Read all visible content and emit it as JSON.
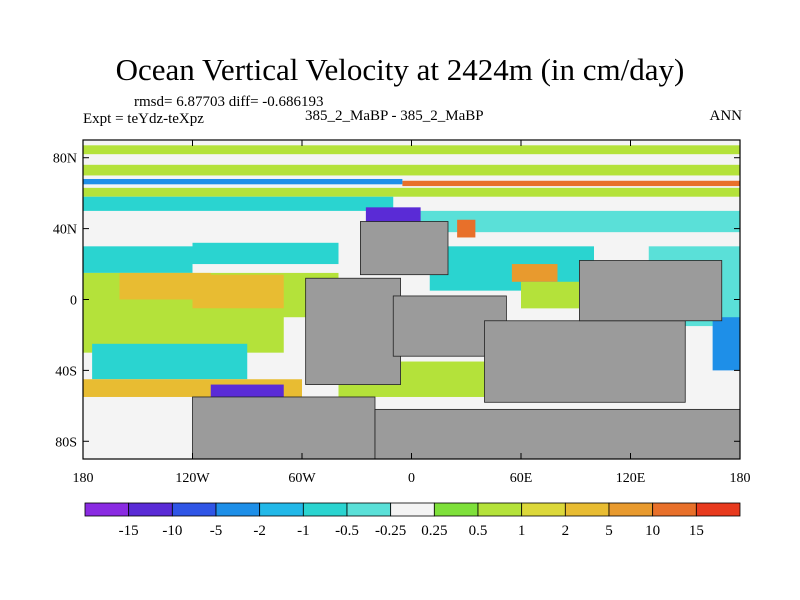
{
  "chart_data": {
    "type": "heatmap",
    "title": "Ocean Vertical Velocity at 2424m (in cm/day)",
    "stats_label": "rmsd= 6.87703 diff= -0.686193",
    "experiment_label": "Expt = teYdz-teXpz",
    "case_label": "385_2_MaBP - 385_2_MaBP",
    "season_label": "ANN",
    "projection": "cylindrical equidistant",
    "xlim": [
      -180,
      180
    ],
    "ylim": [
      -90,
      90
    ],
    "x_ticks": [
      {
        "value": -180,
        "label": "180"
      },
      {
        "value": -120,
        "label": "120W"
      },
      {
        "value": -60,
        "label": "60W"
      },
      {
        "value": 0,
        "label": "0"
      },
      {
        "value": 60,
        "label": "60E"
      },
      {
        "value": 120,
        "label": "120E"
      },
      {
        "value": 180,
        "label": "180"
      }
    ],
    "y_ticks": [
      {
        "value": 80,
        "label": "80N"
      },
      {
        "value": 40,
        "label": "40N"
      },
      {
        "value": 0,
        "label": "0"
      },
      {
        "value": -40,
        "label": "40S"
      },
      {
        "value": -80,
        "label": "80S"
      }
    ],
    "colorbar": {
      "colors": [
        "#8a2be2",
        "#5a2bd6",
        "#2f55e6",
        "#1e8fe8",
        "#22b8e8",
        "#2ad4d0",
        "#5ae0d8",
        "#f4f4f4",
        "#7ee03a",
        "#b4e23a",
        "#dcd83a",
        "#e8bc32",
        "#e89a2e",
        "#e8702a",
        "#e83a1e"
      ],
      "boundaries": [
        "-15",
        "-10",
        "-5",
        "-2",
        "-1",
        "-0.5",
        "-0.25",
        "0.25",
        "0.5",
        "1",
        "2",
        "5",
        "10",
        "15"
      ]
    },
    "land_color": "#9b9b9b",
    "land_boxes": [
      {
        "lon": [
          -120,
          -20
        ],
        "lat": [
          -90,
          -55
        ]
      },
      {
        "lon": [
          -20,
          180
        ],
        "lat": [
          -90,
          -62
        ]
      },
      {
        "lon": [
          -58,
          -6
        ],
        "lat": [
          -48,
          12
        ]
      },
      {
        "lon": [
          -10,
          52
        ],
        "lat": [
          -32,
          2
        ]
      },
      {
        "lon": [
          40,
          150
        ],
        "lat": [
          -58,
          -12
        ]
      },
      {
        "lon": [
          92,
          170
        ],
        "lat": [
          -12,
          22
        ]
      },
      {
        "lon": [
          -28,
          20
        ],
        "lat": [
          14,
          44
        ]
      }
    ],
    "regions": [
      {
        "lon": [
          -180,
          180
        ],
        "lat": [
          82,
          87
        ],
        "value": 0.8
      },
      {
        "lon": [
          -180,
          180
        ],
        "lat": [
          70,
          76
        ],
        "value": 0.7
      },
      {
        "lon": [
          -5,
          180
        ],
        "lat": [
          64,
          67
        ],
        "value": 12
      },
      {
        "lon": [
          -180,
          -5
        ],
        "lat": [
          65,
          68
        ],
        "value": -3
      },
      {
        "lon": [
          -180,
          180
        ],
        "lat": [
          58,
          63
        ],
        "value": 0.7
      },
      {
        "lon": [
          -180,
          -10
        ],
        "lat": [
          50,
          58
        ],
        "value": -0.7
      },
      {
        "lon": [
          -5,
          180
        ],
        "lat": [
          38,
          50
        ],
        "value": -0.4
      },
      {
        "lon": [
          -120,
          -40
        ],
        "lat": [
          20,
          32
        ],
        "value": -0.6
      },
      {
        "lon": [
          -180,
          -120
        ],
        "lat": [
          15,
          30
        ],
        "value": -0.8
      },
      {
        "lon": [
          -180,
          -40
        ],
        "lat": [
          -10,
          15
        ],
        "value": 0.6
      },
      {
        "lon": [
          -160,
          -110
        ],
        "lat": [
          0,
          15
        ],
        "value": 3
      },
      {
        "lon": [
          -120,
          -70
        ],
        "lat": [
          -5,
          14
        ],
        "value": 3
      },
      {
        "lon": [
          10,
          100
        ],
        "lat": [
          5,
          30
        ],
        "value": -0.6
      },
      {
        "lon": [
          60,
          100
        ],
        "lat": [
          -5,
          10
        ],
        "value": 0.5
      },
      {
        "lon": [
          130,
          180
        ],
        "lat": [
          -15,
          30
        ],
        "value": -0.5
      },
      {
        "lon": [
          -180,
          -70
        ],
        "lat": [
          -30,
          -5
        ],
        "value": 0.7
      },
      {
        "lon": [
          -175,
          -90
        ],
        "lat": [
          -45,
          -25
        ],
        "value": -0.6
      },
      {
        "lon": [
          -180,
          -60
        ],
        "lat": [
          -55,
          -45
        ],
        "value": 3
      },
      {
        "lon": [
          -110,
          -70
        ],
        "lat": [
          -58,
          -48
        ],
        "value": -12
      },
      {
        "lon": [
          -40,
          60
        ],
        "lat": [
          -55,
          -35
        ],
        "value": 0.6
      },
      {
        "lon": [
          165,
          180
        ],
        "lat": [
          -40,
          -10
        ],
        "value": -4
      },
      {
        "lon": [
          -25,
          5
        ],
        "lat": [
          40,
          52
        ],
        "value": -14
      },
      {
        "lon": [
          25,
          35
        ],
        "lat": [
          35,
          45
        ],
        "value": 12
      },
      {
        "lon": [
          55,
          80
        ],
        "lat": [
          10,
          20
        ],
        "value": 6
      }
    ]
  }
}
